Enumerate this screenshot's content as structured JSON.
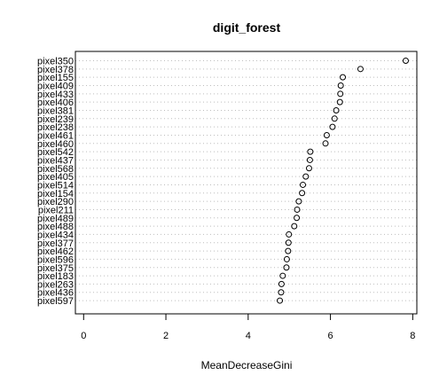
{
  "chart_data": {
    "type": "scatter",
    "title": "digit_forest",
    "xlabel": "MeanDecreaseGini",
    "ylabel": "",
    "xlim": [
      -0.2,
      8.1
    ],
    "xticks": [
      0,
      2,
      4,
      6,
      8
    ],
    "grid": "dotted-horizontal",
    "legend": "none",
    "categories": [
      "pixel350",
      "pixel378",
      "pixel155",
      "pixel409",
      "pixel433",
      "pixel406",
      "pixel381",
      "pixel239",
      "pixel238",
      "pixel461",
      "pixel460",
      "pixel542",
      "pixel437",
      "pixel568",
      "pixel405",
      "pixel514",
      "pixel154",
      "pixel290",
      "pixel211",
      "pixel489",
      "pixel488",
      "pixel434",
      "pixel377",
      "pixel462",
      "pixel596",
      "pixel375",
      "pixel183",
      "pixel263",
      "pixel436",
      "pixel597"
    ],
    "values": [
      7.83,
      6.73,
      6.3,
      6.25,
      6.24,
      6.23,
      6.14,
      6.1,
      6.05,
      5.91,
      5.88,
      5.51,
      5.5,
      5.48,
      5.4,
      5.33,
      5.31,
      5.23,
      5.19,
      5.18,
      5.12,
      4.99,
      4.98,
      4.97,
      4.94,
      4.93,
      4.84,
      4.81,
      4.8,
      4.77
    ]
  }
}
